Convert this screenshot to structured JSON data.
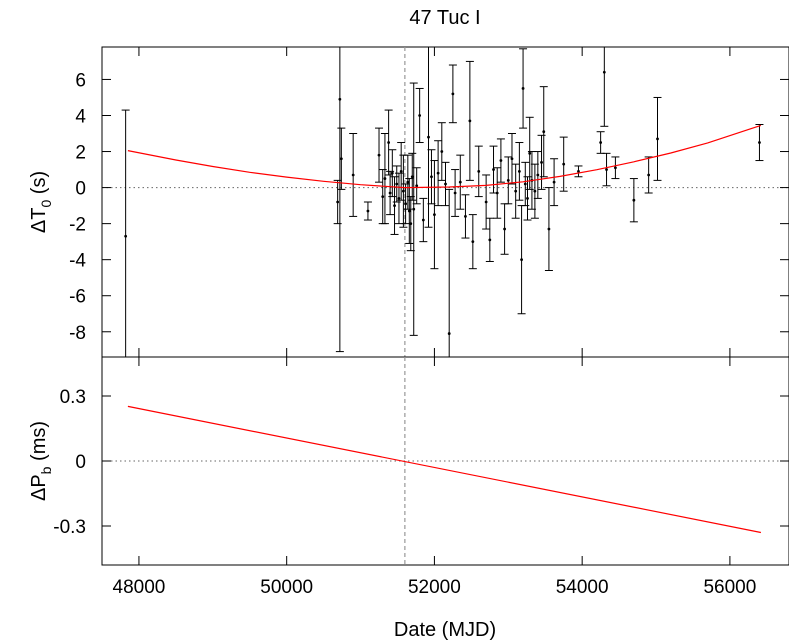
{
  "title": "47 Tuc I",
  "colors": {
    "fit": "#ff0000",
    "points": "#000000",
    "zero_line": "#666666",
    "ref_line": "#999999",
    "frame": "#000000"
  },
  "chart_data": [
    {
      "type": "scatter",
      "panel": "top",
      "title": "47 Tuc I",
      "xlabel": "",
      "ylabel_main": "ΔT",
      "ylabel_sub": "0",
      "ylabel_tail": " (s)",
      "xlim": [
        47500,
        56800
      ],
      "ylim": [
        -9.4,
        7.8
      ],
      "yticks": [
        6,
        4,
        2,
        0,
        -2,
        -4,
        -6,
        -8
      ],
      "ytick_labels": [
        "6",
        "4",
        "2",
        "0",
        "-2",
        "-4",
        "-6",
        "-8"
      ],
      "reference_date": 51600,
      "zero_line": true,
      "series": [
        {
          "kind": "fit_curve",
          "x": [
            47850,
            48500,
            49000,
            49500,
            50000,
            50500,
            51000,
            51600,
            52200,
            52700,
            53200,
            53700,
            54200,
            54700,
            55200,
            55700,
            56420
          ],
          "y": [
            2.05,
            1.53,
            1.17,
            0.85,
            0.58,
            0.35,
            0.16,
            0.0,
            0.03,
            0.12,
            0.32,
            0.62,
            0.99,
            1.43,
            1.92,
            2.48,
            3.45
          ]
        },
        {
          "kind": "points",
          "points": [
            {
              "x": 47820,
              "y": -2.7,
              "err": 7.0
            },
            {
              "x": 50690,
              "y": -0.8,
              "err": 1.2
            },
            {
              "x": 50720,
              "y": 4.9,
              "err": 14.0
            },
            {
              "x": 50740,
              "y": 1.6,
              "err": 1.7
            },
            {
              "x": 50900,
              "y": 0.7,
              "err": 2.3
            },
            {
              "x": 51100,
              "y": -1.3,
              "err": 0.5
            },
            {
              "x": 51250,
              "y": 1.8,
              "err": 1.5
            },
            {
              "x": 51300,
              "y": -0.5,
              "err": 1.5
            },
            {
              "x": 51330,
              "y": 0.5,
              "err": 2.5
            },
            {
              "x": 51380,
              "y": 2.5,
              "err": 1.8
            },
            {
              "x": 51400,
              "y": -0.3,
              "err": 1.2
            },
            {
              "x": 51430,
              "y": 0.8,
              "err": 1.3
            },
            {
              "x": 51460,
              "y": -1.0,
              "err": 1.6
            },
            {
              "x": 51490,
              "y": 0.2,
              "err": 1.0
            },
            {
              "x": 51520,
              "y": -0.6,
              "err": 1.4
            },
            {
              "x": 51550,
              "y": 0.9,
              "err": 1.6
            },
            {
              "x": 51580,
              "y": -0.2,
              "err": 2.0
            },
            {
              "x": 51610,
              "y": -0.9,
              "err": 1.1
            },
            {
              "x": 51640,
              "y": 0.3,
              "err": 1.5
            },
            {
              "x": 51660,
              "y": -1.3,
              "err": 1.8
            },
            {
              "x": 51680,
              "y": -2.0,
              "err": 1.5
            },
            {
              "x": 51700,
              "y": 0.6,
              "err": 1.3
            },
            {
              "x": 51720,
              "y": -1.2,
              "err": 7.0
            },
            {
              "x": 51760,
              "y": 0.1,
              "err": 1.0
            },
            {
              "x": 51800,
              "y": 4.0,
              "err": 1.5
            },
            {
              "x": 51850,
              "y": -1.8,
              "err": 1.2
            },
            {
              "x": 51920,
              "y": 2.8,
              "err": 5.0
            },
            {
              "x": 51960,
              "y": 0.6,
              "err": 1.5
            },
            {
              "x": 52000,
              "y": -1.5,
              "err": 3.0
            },
            {
              "x": 52050,
              "y": 0.8,
              "err": 1.8
            },
            {
              "x": 52100,
              "y": 2.0,
              "err": 1.6
            },
            {
              "x": 52150,
              "y": 0.2,
              "err": 1.2
            },
            {
              "x": 52200,
              "y": -8.1,
              "err": 8.0
            },
            {
              "x": 52250,
              "y": 5.2,
              "err": 1.6
            },
            {
              "x": 52280,
              "y": -0.3,
              "err": 1.3
            },
            {
              "x": 52350,
              "y": 0.3,
              "err": 1.5
            },
            {
              "x": 52420,
              "y": -1.6,
              "err": 1.2
            },
            {
              "x": 52480,
              "y": 3.7,
              "err": 3.3
            },
            {
              "x": 52520,
              "y": -3.0,
              "err": 1.5
            },
            {
              "x": 52600,
              "y": 0.9,
              "err": 1.4
            },
            {
              "x": 52700,
              "y": -0.8,
              "err": 1.5
            },
            {
              "x": 52750,
              "y": -2.9,
              "err": 1.2
            },
            {
              "x": 52800,
              "y": 1.0,
              "err": 1.3
            },
            {
              "x": 52850,
              "y": -0.3,
              "err": 1.4
            },
            {
              "x": 52900,
              "y": 1.5,
              "err": 1.2
            },
            {
              "x": 52950,
              "y": -2.3,
              "err": 1.4
            },
            {
              "x": 53000,
              "y": 0.4,
              "err": 1.3
            },
            {
              "x": 53050,
              "y": 1.6,
              "err": 1.4
            },
            {
              "x": 53100,
              "y": -0.2,
              "err": 1.5
            },
            {
              "x": 53150,
              "y": 0.9,
              "err": 1.6
            },
            {
              "x": 53180,
              "y": -4.0,
              "err": 3.0
            },
            {
              "x": 53200,
              "y": 5.5,
              "err": 2.2
            },
            {
              "x": 53230,
              "y": 0.2,
              "err": 1.2
            },
            {
              "x": 53260,
              "y": -0.6,
              "err": 1.2
            },
            {
              "x": 53290,
              "y": 1.9,
              "err": 2.0
            },
            {
              "x": 53320,
              "y": 0.4,
              "err": 1.6
            },
            {
              "x": 53360,
              "y": -0.2,
              "err": 1.5
            },
            {
              "x": 53400,
              "y": 0.7,
              "err": 1.3
            },
            {
              "x": 53450,
              "y": 1.4,
              "err": 1.5
            },
            {
              "x": 53480,
              "y": 3.1,
              "err": 2.5
            },
            {
              "x": 53550,
              "y": -2.3,
              "err": 2.3
            },
            {
              "x": 53620,
              "y": 0.3,
              "err": 1.3
            },
            {
              "x": 53750,
              "y": 1.3,
              "err": 1.5
            },
            {
              "x": 53950,
              "y": 0.9,
              "err": 0.3
            },
            {
              "x": 54250,
              "y": 2.5,
              "err": 0.6
            },
            {
              "x": 54300,
              "y": 6.4,
              "err": 3.0
            },
            {
              "x": 54330,
              "y": 1.0,
              "err": 0.9
            },
            {
              "x": 54450,
              "y": 1.1,
              "err": 0.6
            },
            {
              "x": 54700,
              "y": -0.7,
              "err": 1.2
            },
            {
              "x": 54900,
              "y": 0.7,
              "err": 1.0
            },
            {
              "x": 55020,
              "y": 2.7,
              "err": 2.3
            },
            {
              "x": 56400,
              "y": 2.5,
              "err": 1.0
            }
          ]
        }
      ]
    },
    {
      "type": "line",
      "panel": "bottom",
      "xlabel": "Date (MJD)",
      "ylabel_main": "ΔP",
      "ylabel_sub": "b",
      "ylabel_tail": " (ms)",
      "xlim": [
        47500,
        56800
      ],
      "ylim": [
        -0.48,
        0.48
      ],
      "yticks": [
        0.3,
        0,
        -0.3
      ],
      "ytick_labels": [
        "0.3",
        "0",
        "-0.3"
      ],
      "xticks": [
        48000,
        50000,
        52000,
        54000,
        56000
      ],
      "xtick_labels": [
        "48000",
        "50000",
        "52000",
        "54000",
        "56000"
      ],
      "reference_date": 51600,
      "zero_line": true,
      "series": [
        {
          "kind": "fit_line",
          "x": [
            47850,
            56420
          ],
          "y": [
            0.252,
            -0.33
          ]
        }
      ]
    }
  ]
}
